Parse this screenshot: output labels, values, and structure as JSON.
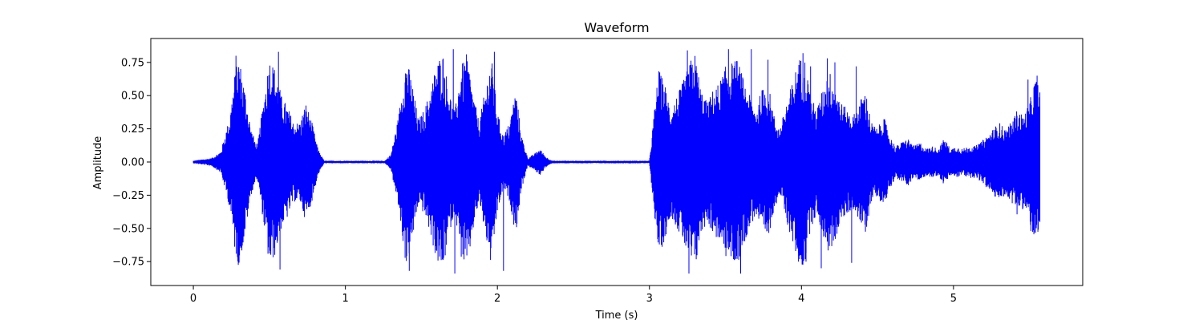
{
  "chart_data": {
    "type": "line",
    "title": "Waveform",
    "xlabel": "Time (s)",
    "ylabel": "Amplitude",
    "xlim": [
      -0.28,
      5.85
    ],
    "ylim": [
      -0.93,
      0.93
    ],
    "x_ticks": [
      0,
      1,
      2,
      3,
      4,
      5
    ],
    "x_tick_labels": [
      "0",
      "1",
      "2",
      "3",
      "4",
      "5"
    ],
    "y_ticks": [
      -0.75,
      -0.5,
      -0.25,
      0.0,
      0.25,
      0.5,
      0.75
    ],
    "y_tick_labels": [
      "−0.75",
      "−0.50",
      "−0.25",
      "0.00",
      "0.25",
      "0.50",
      "0.75"
    ],
    "grid": false,
    "line_color": "#0000ff",
    "duration_s": 5.57,
    "series": [
      {
        "envelope": {
          "t": [
            0.0,
            0.12,
            0.18,
            0.24,
            0.27,
            0.3,
            0.34,
            0.38,
            0.42,
            0.46,
            0.5,
            0.54,
            0.58,
            0.62,
            0.66,
            0.7,
            0.74,
            0.78,
            0.82,
            0.86,
            1.26,
            1.3,
            1.35,
            1.4,
            1.44,
            1.48,
            1.52,
            1.56,
            1.6,
            1.64,
            1.68,
            1.72,
            1.76,
            1.8,
            1.84,
            1.88,
            1.92,
            1.96,
            2.0,
            2.04,
            2.08,
            2.12,
            2.16,
            2.2,
            2.24,
            2.28,
            2.32,
            2.36,
            2.4,
            3.0,
            3.02,
            3.06,
            3.1,
            3.14,
            3.18,
            3.22,
            3.26,
            3.3,
            3.34,
            3.38,
            3.42,
            3.46,
            3.5,
            3.54,
            3.58,
            3.62,
            3.66,
            3.7,
            3.74,
            3.78,
            3.82,
            3.86,
            3.9,
            3.94,
            3.98,
            4.02,
            4.06,
            4.1,
            4.14,
            4.18,
            4.22,
            4.26,
            4.3,
            4.34,
            4.38,
            4.42,
            4.46,
            4.5,
            4.54,
            4.58,
            4.62,
            4.66,
            4.7,
            4.74,
            4.78,
            4.82,
            4.86,
            4.9,
            4.94,
            4.98,
            5.02,
            5.06,
            5.1,
            5.14,
            5.18,
            5.22,
            5.26,
            5.3,
            5.34,
            5.38,
            5.42,
            5.46,
            5.5,
            5.54,
            5.57
          ],
          "amplitude": [
            0.01,
            0.03,
            0.08,
            0.35,
            0.65,
            0.8,
            0.55,
            0.25,
            0.12,
            0.45,
            0.8,
            0.7,
            0.5,
            0.42,
            0.3,
            0.3,
            0.45,
            0.3,
            0.1,
            0.01,
            0.01,
            0.06,
            0.35,
            0.8,
            0.6,
            0.32,
            0.4,
            0.55,
            0.75,
            0.84,
            0.55,
            0.38,
            0.72,
            0.82,
            0.52,
            0.3,
            0.55,
            0.8,
            0.38,
            0.2,
            0.3,
            0.55,
            0.2,
            0.03,
            0.06,
            0.1,
            0.04,
            0.01,
            0.01,
            0.01,
            0.25,
            0.7,
            0.6,
            0.4,
            0.5,
            0.6,
            0.75,
            0.82,
            0.55,
            0.45,
            0.55,
            0.6,
            0.72,
            0.75,
            0.78,
            0.62,
            0.5,
            0.4,
            0.55,
            0.6,
            0.35,
            0.25,
            0.45,
            0.6,
            0.78,
            0.8,
            0.5,
            0.4,
            0.55,
            0.7,
            0.6,
            0.45,
            0.4,
            0.35,
            0.45,
            0.55,
            0.3,
            0.25,
            0.35,
            0.2,
            0.12,
            0.15,
            0.18,
            0.12,
            0.15,
            0.1,
            0.12,
            0.1,
            0.18,
            0.1,
            0.12,
            0.1,
            0.12,
            0.12,
            0.15,
            0.2,
            0.25,
            0.3,
            0.25,
            0.3,
            0.4,
            0.35,
            0.45,
            0.65,
            0.55
          ]
        },
        "spikes": [
          {
            "t": 0.28,
            "y": 0.8
          },
          {
            "t": 0.56,
            "y": 0.83
          },
          {
            "t": 0.57,
            "y": -0.81
          },
          {
            "t": 1.42,
            "y": -0.82
          },
          {
            "t": 1.71,
            "y": 0.85
          },
          {
            "t": 1.72,
            "y": -0.84
          },
          {
            "t": 1.98,
            "y": 0.83
          },
          {
            "t": 2.04,
            "y": -0.82
          },
          {
            "t": 3.25,
            "y": 0.84
          },
          {
            "t": 3.26,
            "y": -0.84
          },
          {
            "t": 3.52,
            "y": 0.85
          },
          {
            "t": 3.6,
            "y": -0.84
          },
          {
            "t": 3.67,
            "y": 0.85
          },
          {
            "t": 3.78,
            "y": 0.77
          },
          {
            "t": 3.98,
            "y": -0.68
          },
          {
            "t": 4.01,
            "y": 0.82
          },
          {
            "t": 4.03,
            "y": -0.75
          },
          {
            "t": 4.06,
            "y": 0.72
          },
          {
            "t": 4.13,
            "y": -0.8
          },
          {
            "t": 4.17,
            "y": 0.78
          },
          {
            "t": 4.22,
            "y": 0.75
          },
          {
            "t": 4.33,
            "y": -0.76
          },
          {
            "t": 4.36,
            "y": 0.72
          },
          {
            "t": 5.49,
            "y": 0.62
          },
          {
            "t": 5.51,
            "y": -0.52
          },
          {
            "t": 5.55,
            "y": 0.65
          }
        ]
      }
    ]
  }
}
